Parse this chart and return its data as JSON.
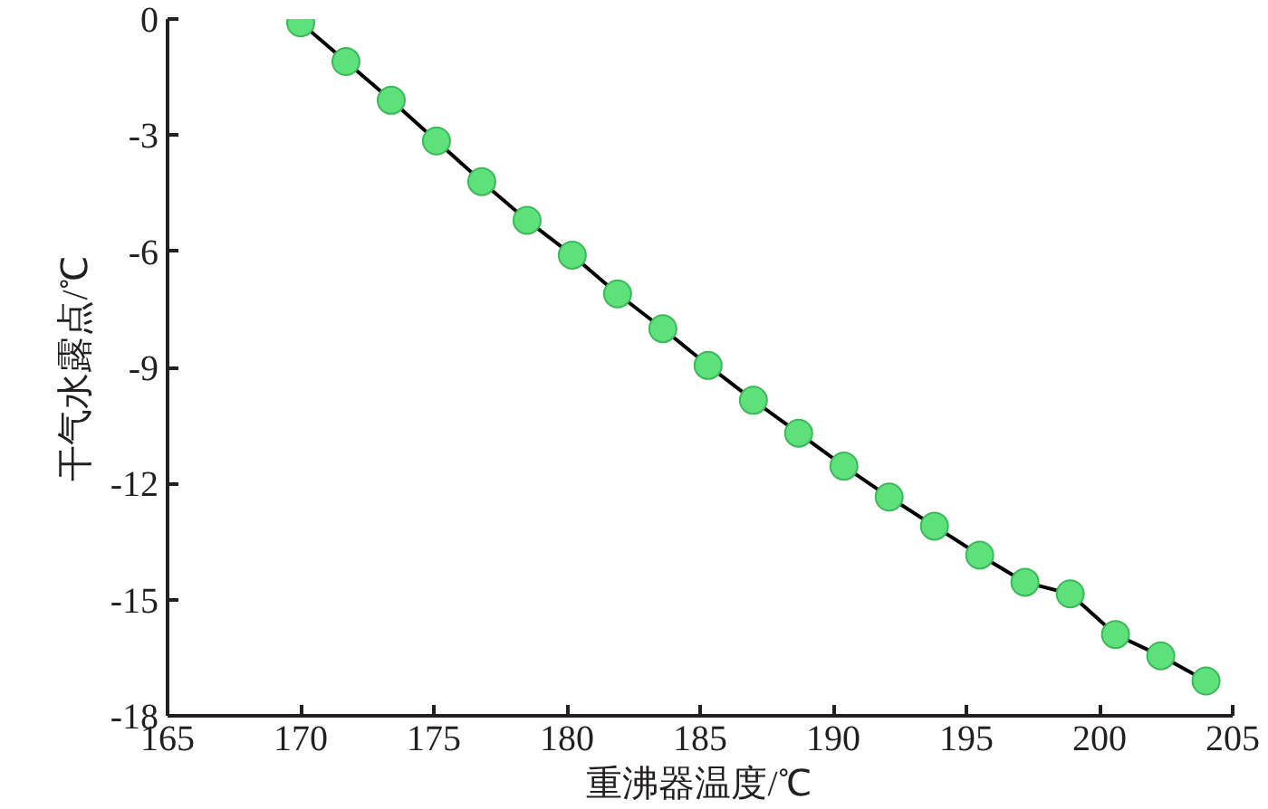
{
  "chart_data": {
    "type": "line",
    "xlabel": "重沸器温度/℃",
    "ylabel": "干气水露点/℃",
    "x": [
      170,
      171.7,
      173.4,
      175.1,
      176.8,
      178.5,
      180.2,
      181.9,
      183.6,
      185.3,
      187.0,
      188.7,
      190.4,
      192.1,
      193.8,
      195.5,
      197.2,
      198.9,
      200.6,
      202.3,
      204.0
    ],
    "series": [
      {
        "color": "#5ee07a",
        "values": [
          -0.1,
          -1.1,
          -2.1,
          -3.15,
          -4.2,
          -5.2,
          -6.1,
          -7.1,
          -8.0,
          -8.95,
          -9.85,
          -10.7,
          -11.55,
          -12.35,
          -13.1,
          -13.85,
          -14.55,
          -14.85,
          -15.9,
          -16.45,
          -17.1
        ]
      }
    ],
    "xlim": [
      165,
      205
    ],
    "xticks": [
      165,
      170,
      175,
      180,
      185,
      190,
      195,
      200,
      205
    ],
    "ylim": [
      -18,
      0
    ],
    "yticks": [
      -18,
      -15,
      -12,
      -9,
      -6,
      -3,
      0
    ],
    "marker": "circle",
    "line_style": "solid"
  }
}
